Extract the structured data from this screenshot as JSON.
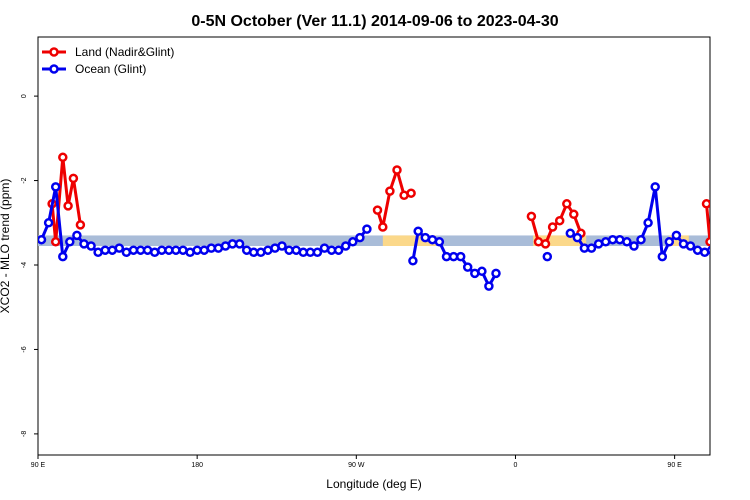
{
  "chart_data": {
    "type": "line",
    "title": "0-5N October (Ver 11.1)   2014-09-06 to 2023-04-30",
    "xlabel": "Longitude (deg E)",
    "ylabel": "XCO2 - MLO trend (ppm)",
    "xlim": [
      90,
      470
    ],
    "ylim": [
      -8.5,
      1.4
    ],
    "x_ticks": [
      {
        "value": 90,
        "label": "90 E"
      },
      {
        "value": 180,
        "label": "180"
      },
      {
        "value": 270,
        "label": "90 W"
      },
      {
        "value": 360,
        "label": "0"
      },
      {
        "value": 450,
        "label": "90 E"
      },
      {
        "value": 540,
        "label": "180"
      }
    ],
    "y_ticks": [
      {
        "value": 0,
        "label": "0"
      },
      {
        "value": -2,
        "label": "-2"
      },
      {
        "value": -4,
        "label": "-4"
      },
      {
        "value": -6,
        "label": "-6"
      },
      {
        "value": -8,
        "label": "-8"
      }
    ],
    "legend_position": "top-left",
    "band": {
      "y_low": -3.55,
      "y_high": -3.3,
      "ocean_color": "#a9bcd8",
      "land_color": "#fbd88a",
      "land_segments": [
        [
          285,
          315
        ],
        [
          370,
          400
        ],
        [
          447,
          458
        ]
      ]
    },
    "series": [
      {
        "name": "Land (Nadir&Glint)",
        "color": "#ee0000",
        "segments": [
          [
            [
              98,
              -2.55
            ],
            [
              100,
              -3.45
            ],
            [
              104,
              -1.45
            ],
            [
              107,
              -2.6
            ],
            [
              110,
              -1.95
            ],
            [
              114,
              -3.05
            ]
          ],
          [
            [
              282,
              -2.7
            ],
            [
              285,
              -3.1
            ],
            [
              289,
              -2.25
            ],
            [
              293,
              -1.75
            ],
            [
              297,
              -2.35
            ],
            [
              301,
              -2.3
            ]
          ],
          [
            [
              369,
              -2.85
            ],
            [
              373,
              -3.45
            ],
            [
              377,
              -3.5
            ],
            [
              381,
              -3.1
            ],
            [
              385,
              -2.95
            ],
            [
              389,
              -2.55
            ],
            [
              393,
              -2.8
            ],
            [
              397,
              -3.25
            ]
          ],
          [
            [
              468,
              -2.55
            ],
            [
              470,
              -3.45
            ],
            [
              474,
              -1.45
            ],
            [
              477,
              -2.6
            ],
            [
              480,
              -1.95
            ],
            [
              484,
              -3.05
            ]
          ]
        ]
      },
      {
        "name": "Ocean (Glint)",
        "color": "#0000ee",
        "segments": [
          [
            [
              92,
              -3.4
            ],
            [
              96,
              -3.0
            ],
            [
              100,
              -2.15
            ],
            [
              104,
              -3.8
            ],
            [
              108,
              -3.45
            ],
            [
              112,
              -3.3
            ],
            [
              116,
              -3.5
            ],
            [
              120,
              -3.55
            ],
            [
              124,
              -3.7
            ],
            [
              128,
              -3.65
            ],
            [
              132,
              -3.65
            ],
            [
              136,
              -3.6
            ],
            [
              140,
              -3.7
            ],
            [
              144,
              -3.65
            ],
            [
              148,
              -3.65
            ],
            [
              152,
              -3.65
            ],
            [
              156,
              -3.7
            ],
            [
              160,
              -3.65
            ],
            [
              164,
              -3.65
            ],
            [
              168,
              -3.65
            ],
            [
              172,
              -3.65
            ],
            [
              176,
              -3.7
            ],
            [
              180,
              -3.65
            ],
            [
              184,
              -3.65
            ],
            [
              188,
              -3.6
            ],
            [
              192,
              -3.6
            ],
            [
              196,
              -3.55
            ],
            [
              200,
              -3.5
            ],
            [
              204,
              -3.5
            ],
            [
              208,
              -3.65
            ],
            [
              212,
              -3.7
            ],
            [
              216,
              -3.7
            ],
            [
              220,
              -3.65
            ],
            [
              224,
              -3.6
            ],
            [
              228,
              -3.55
            ],
            [
              232,
              -3.65
            ],
            [
              236,
              -3.65
            ],
            [
              240,
              -3.7
            ],
            [
              244,
              -3.7
            ],
            [
              248,
              -3.7
            ],
            [
              252,
              -3.6
            ],
            [
              256,
              -3.65
            ],
            [
              260,
              -3.65
            ],
            [
              264,
              -3.55
            ],
            [
              268,
              -3.45
            ],
            [
              272,
              -3.35
            ],
            [
              276,
              -3.15
            ]
          ],
          [
            [
              302,
              -3.9
            ],
            [
              305,
              -3.2
            ],
            [
              309,
              -3.35
            ],
            [
              313,
              -3.4
            ],
            [
              317,
              -3.45
            ],
            [
              321,
              -3.8
            ],
            [
              325,
              -3.8
            ],
            [
              329,
              -3.8
            ],
            [
              333,
              -4.05
            ],
            [
              337,
              -4.2
            ],
            [
              341,
              -4.15
            ],
            [
              345,
              -4.5
            ],
            [
              349,
              -4.2
            ]
          ],
          [
            [
              378,
              -3.8
            ]
          ],
          [
            [
              391,
              -3.25
            ],
            [
              395,
              -3.35
            ],
            [
              399,
              -3.6
            ],
            [
              403,
              -3.6
            ],
            [
              407,
              -3.5
            ],
            [
              411,
              -3.45
            ],
            [
              415,
              -3.4
            ],
            [
              419,
              -3.4
            ],
            [
              423,
              -3.45
            ],
            [
              427,
              -3.55
            ],
            [
              431,
              -3.4
            ],
            [
              435,
              -3.0
            ],
            [
              439,
              -2.15
            ],
            [
              443,
              -3.8
            ],
            [
              447,
              -3.45
            ],
            [
              451,
              -3.3
            ],
            [
              455,
              -3.5
            ],
            [
              459,
              -3.55
            ],
            [
              463,
              -3.65
            ],
            [
              467,
              -3.7
            ],
            [
              471,
              -3.65
            ],
            [
              475,
              -3.65
            ],
            [
              479,
              -3.6
            ],
            [
              483,
              -3.7
            ],
            [
              487,
              -3.65
            ],
            [
              491,
              -3.65
            ],
            [
              495,
              -3.65
            ],
            [
              499,
              -3.7
            ]
          ]
        ]
      }
    ]
  }
}
